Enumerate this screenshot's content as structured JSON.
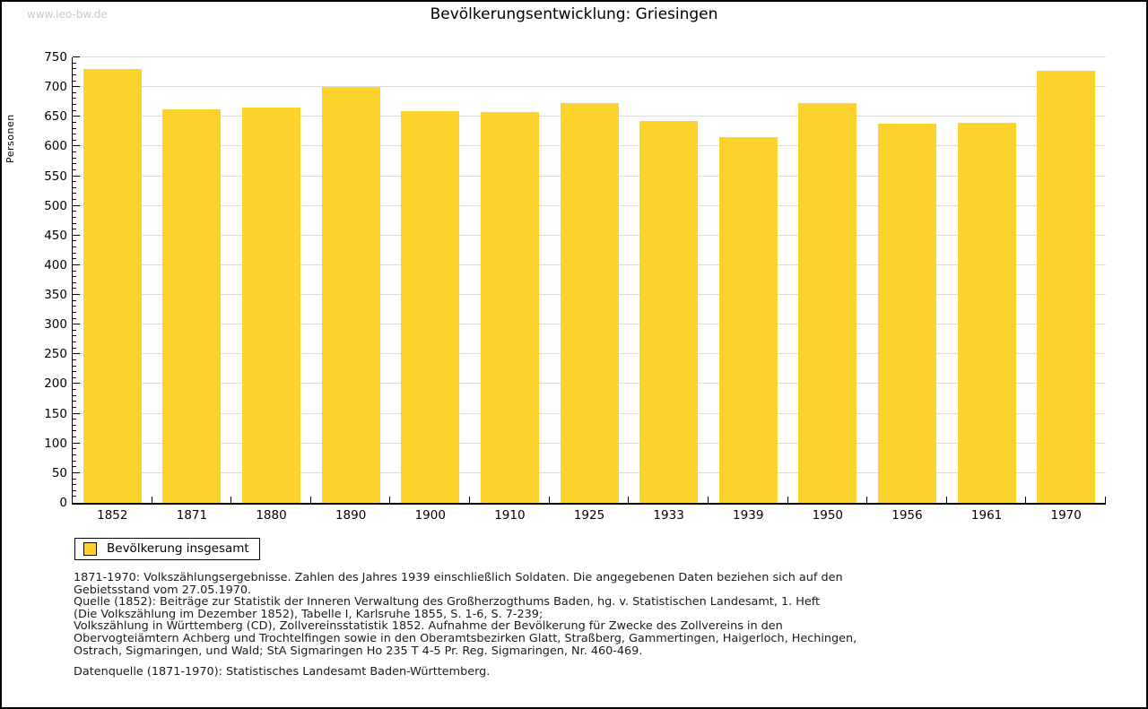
{
  "watermark": "www.leo-bw.de",
  "header": {
    "title": "Bevölkerungsentwicklung: Griesingen"
  },
  "chart_data": {
    "type": "bar",
    "title": "Bevölkerungsentwicklung: Griesingen",
    "xlabel": "",
    "ylabel": "Personen",
    "ylim": [
      0,
      750
    ],
    "y_major_step": 50,
    "y_minor_step": 10,
    "grid": "horizontal-major",
    "legend_position": "bottom-left",
    "bar_color": "#fcd32d",
    "categories": [
      "1852",
      "1871",
      "1880",
      "1890",
      "1900",
      "1910",
      "1925",
      "1933",
      "1939",
      "1950",
      "1956",
      "1961",
      "1970"
    ],
    "series": [
      {
        "name": "Bevölkerung insgesamt",
        "values": [
          730,
          663,
          665,
          700,
          659,
          658,
          673,
          643,
          616,
          673,
          638,
          640,
          728
        ]
      }
    ]
  },
  "legend": {
    "label": "Bevölkerung insgesamt",
    "swatch_color": "#fcd32d"
  },
  "footnote_lines": [
    "1871-1970: Volkszählungsergebnisse. Zahlen des Jahres 1939 einschließlich Soldaten. Die angegebenen Daten beziehen sich auf den",
    "Gebietsstand vom 27.05.1970.",
    "Quelle (1852): Beiträge zur Statistik der Inneren Verwaltung des Großherzogthums Baden, hg. v. Statistischen Landesamt, 1. Heft",
    "(Die Volkszählung im Dezember 1852), Tabelle I, Karlsruhe 1855, S. 1-6, S. 7-239;",
    "Volkszählung in Württemberg (CD), Zollvereinsstatistik 1852. Aufnahme der Bevölkerung für Zwecke des Zollvereins in den",
    "Obervogteiämtern Achberg und Trochtelfingen sowie in den Oberamtsbezirken Glatt, Straßberg, Gammertingen, Haigerloch, Hechingen,",
    "Ostrach, Sigmaringen, und Wald; StA Sigmaringen Ho 235 T 4-5 Pr. Reg. Sigmaringen, Nr. 460-469."
  ],
  "source_line": "Datenquelle (1871-1970): Statistisches Landesamt Baden-Württemberg.",
  "colors": {
    "bar": "#fcd32d",
    "gridline": "#dcdcdc",
    "axis": "#000000",
    "watermark": "#c9c9c9",
    "text": "#1a1a1a"
  }
}
